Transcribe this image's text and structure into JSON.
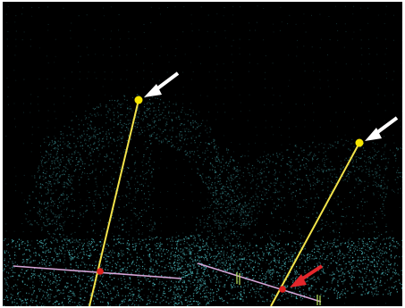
{
  "image": {
    "kind": "3D point cloud visualization",
    "background_color": "#000000",
    "frame_color": "#ffffff",
    "point_color": "#4fc3c7",
    "yellow_line_color": "#f2e34a",
    "marker_yellow_color": "#f7e600",
    "marker_red_color": "#e0201c",
    "pink_line_color": "#d6a6d8",
    "green_tick_color": "#b8e05a",
    "arrow_white_color": "#ffffff",
    "arrow_red_color": "#e3262b"
  },
  "annotations": {
    "white_arrows": 2,
    "red_arrows": 1,
    "yellow_markers": 2,
    "red_markers": 2
  }
}
